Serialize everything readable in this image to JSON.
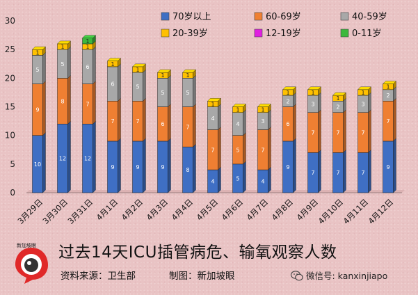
{
  "chart_data": {
    "type": "bar",
    "stacked": true,
    "categories": [
      "3月29日",
      "3月30日",
      "3月31日",
      "4月1日",
      "4月2日",
      "4月3日",
      "4月4日",
      "4月5日",
      "4月6日",
      "4月7日",
      "4月8日",
      "4月9日",
      "4月10日",
      "4月11日",
      "4月12日"
    ],
    "series": [
      {
        "name": "70岁以上",
        "color": "#3f6fc4",
        "values": [
          10,
          12,
          12,
          9,
          9,
          9,
          8,
          4,
          5,
          4,
          9,
          7,
          7,
          7,
          9
        ]
      },
      {
        "name": "60-69岁",
        "color": "#ef7f32",
        "values": [
          9,
          8,
          7,
          7,
          7,
          6,
          7,
          7,
          5,
          7,
          6,
          7,
          7,
          7,
          7
        ]
      },
      {
        "name": "40-59岁",
        "color": "#a8a8a8",
        "values": [
          5,
          5,
          6,
          6,
          5,
          5,
          5,
          4,
          4,
          3,
          2,
          3,
          2,
          3,
          2
        ]
      },
      {
        "name": "20-39岁",
        "color": "#ffc000",
        "values": [
          1,
          1,
          1,
          1,
          1,
          1,
          1,
          1,
          1,
          1,
          1,
          1,
          1,
          1,
          1
        ]
      },
      {
        "name": "12-19岁",
        "color": "#e020e0",
        "values": [
          0,
          0,
          0,
          0,
          0,
          0,
          0,
          0,
          0,
          0,
          0,
          0,
          0,
          0,
          0
        ]
      },
      {
        "name": "0-11岁",
        "color": "#3cb83c",
        "values": [
          0,
          0,
          1,
          0,
          0,
          0,
          0,
          0,
          0,
          0,
          0,
          0,
          0,
          0,
          0
        ]
      }
    ],
    "ylim": [
      0,
      30
    ],
    "yticks": [
      0,
      5,
      10,
      15,
      20,
      25,
      30
    ],
    "legend_position": "top-right",
    "grid": false
  },
  "footer": {
    "title": "过去14天ICU插管病危、输氧观察人数",
    "source": "资料来源：卫生部",
    "credit": "制图：新加坡眼",
    "logo_text": "新加坡眼",
    "wechat": "微信号: kanxinjiapo"
  }
}
